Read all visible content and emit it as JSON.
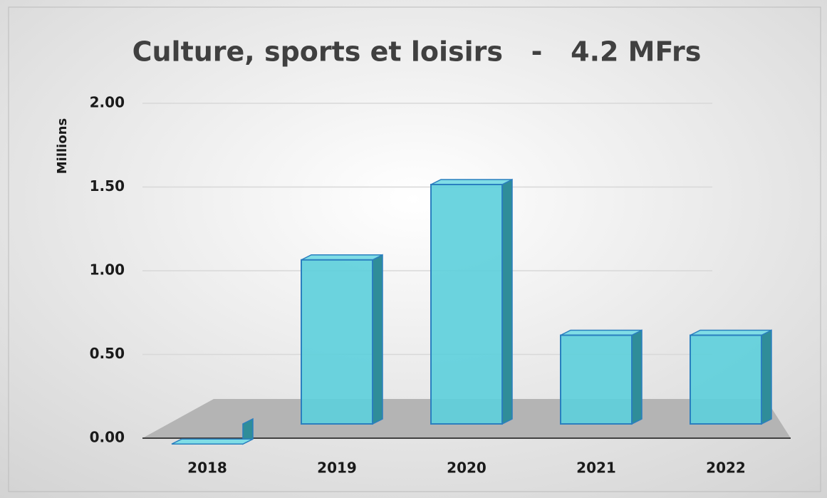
{
  "chart_data": {
    "type": "bar3d",
    "title": "Culture, sports et loisirs   -   4.2 MFrs",
    "y_label": "Millions",
    "categories": [
      "2018",
      "2019",
      "2020",
      "2021",
      "2022"
    ],
    "values": [
      0.05,
      1.15,
      1.6,
      0.7,
      0.7
    ],
    "color": "#5ccfdc",
    "ylim": [
      0,
      2
    ],
    "yticks": [
      {
        "value": 0,
        "label": "0.00"
      },
      {
        "value": 0.5,
        "label": "0.50"
      },
      {
        "value": 1,
        "label": "1.00"
      },
      {
        "value": 1.5,
        "label": "1.50"
      },
      {
        "value": 2,
        "label": "2.00"
      }
    ],
    "grid": true
  }
}
